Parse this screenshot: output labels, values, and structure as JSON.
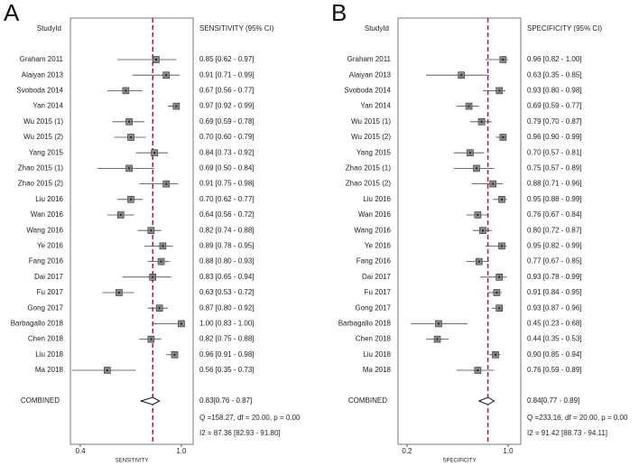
{
  "chart_data": [
    {
      "type": "forest",
      "panel_label": "A",
      "column_header": "StudyId",
      "ci_header": "SENSITIVITY (95% CI)",
      "xlabel": "SENSITIVITY",
      "categories": [
        "Graham 2011",
        "Alaiyan 2013",
        "Svoboda 2014",
        "Yan 2014",
        "Wu 2015 (1)",
        "Wu 2015 (2)",
        "Yang 2015",
        "Zhao 2015 (1)",
        "Zhao 2015 (2)",
        "Liu 2016",
        "Wan 2016",
        "Wang 2016",
        "Ye 2016",
        "Fang 2016",
        "Dai 2017",
        "Fu 2017",
        "Gong 2017",
        "Barbagallo 2018",
        "Chen 2018",
        "Liu 2018",
        "Ma 2018"
      ],
      "values": [
        0.85,
        0.91,
        0.67,
        0.97,
        0.69,
        0.7,
        0.84,
        0.69,
        0.91,
        0.7,
        0.64,
        0.82,
        0.89,
        0.88,
        0.83,
        0.63,
        0.87,
        1.0,
        0.82,
        0.96,
        0.56
      ],
      "lower": [
        0.62,
        0.71,
        0.56,
        0.92,
        0.59,
        0.6,
        0.73,
        0.5,
        0.75,
        0.62,
        0.56,
        0.74,
        0.78,
        0.8,
        0.65,
        0.53,
        0.8,
        0.83,
        0.75,
        0.91,
        0.35
      ],
      "upper": [
        0.97,
        0.99,
        0.77,
        0.99,
        0.78,
        0.79,
        0.92,
        0.84,
        0.98,
        0.77,
        0.72,
        0.88,
        0.95,
        0.93,
        0.94,
        0.72,
        0.92,
        1.0,
        0.88,
        0.98,
        0.73
      ],
      "value_labels": [
        "0.85 [0.62 - 0.97]",
        "0.91 [0.71 - 0.99]",
        "0.67 [0.56 - 0.77]",
        "0.97 [0.92 - 0.99]",
        "0.69 [0.59 - 0.78]",
        "0.70 [0.60 - 0.79]",
        "0.84 [0.73 - 0.92]",
        "0.69 [0.50 - 0.84]",
        "0.91 [0.75 - 0.98]",
        "0.70 [0.62 - 0.77]",
        "0.64 [0.56 - 0.72]",
        "0.82 [0.74 - 0.88]",
        "0.89 [0.78 - 0.95]",
        "0.88 [0.80 - 0.93]",
        "0.83 [0.65 - 0.94]",
        "0.63 [0.53 - 0.72]",
        "0.87 [0.80 - 0.92]",
        "1.00 [0.83 - 1.00]",
        "0.82 [0.75 - 0.88]",
        "0.96 [0.91 - 0.98]",
        "0.56 [0.35 - 0.73]"
      ],
      "combined_label": "COMBINED",
      "combined": {
        "value": 0.83,
        "lower": 0.76,
        "upper": 0.87,
        "label": "0.83[0.76 - 0.87]"
      },
      "q_text": "Q =158.27, df = 20.00, p =  0.00",
      "i2_text": "I2 = 87.36 [82.93 - 91.80]",
      "xlim": [
        0.341,
        1.07
      ],
      "xticks": [
        0.4,
        {
          "value": 1,
          "label": "1.0"
        }
      ],
      "color": "#888888",
      "reference_line_color": "#c0143c"
    },
    {
      "type": "forest",
      "panel_label": "B",
      "column_header": "StudyId",
      "ci_header": "SPECIFICITY (95% CI)",
      "xlabel": "SPECIFICITY",
      "categories": [
        "Graham 2011",
        "Alaiyan 2013",
        "Svoboda 2014",
        "Yan 2014",
        "Wu 2015 (1)",
        "Wu 2015 (2)",
        "Yang 2015",
        "Zhao 2015 (1)",
        "Zhao 2015 (2)",
        "Liu 2016",
        "Wan 2016",
        "Wang 2016",
        "Ye 2016",
        "Fang 2016",
        "Dai 2017",
        "Fu 2017",
        "Gong 2017",
        "Barbagallo 2018",
        "Chen 2018",
        "Liu 2018",
        "Ma 2018"
      ],
      "values": [
        0.96,
        0.63,
        0.93,
        0.69,
        0.79,
        0.96,
        0.7,
        0.75,
        0.88,
        0.95,
        0.76,
        0.8,
        0.95,
        0.77,
        0.93,
        0.91,
        0.93,
        0.45,
        0.44,
        0.9,
        0.76
      ],
      "lower": [
        0.82,
        0.35,
        0.8,
        0.59,
        0.7,
        0.9,
        0.57,
        0.57,
        0.71,
        0.88,
        0.67,
        0.72,
        0.82,
        0.67,
        0.78,
        0.84,
        0.87,
        0.23,
        0.35,
        0.85,
        0.59
      ],
      "upper": [
        1.0,
        0.85,
        0.98,
        0.77,
        0.87,
        0.99,
        0.81,
        0.89,
        0.96,
        0.99,
        0.84,
        0.87,
        0.99,
        0.85,
        0.99,
        0.95,
        0.96,
        0.68,
        0.53,
        0.94,
        0.89
      ],
      "value_labels": [
        "0.96 [0.82 - 1.00]",
        "0.63 [0.35 - 0.85]",
        "0.93 [0.80 - 0.98]",
        "0.69 [0.59 - 0.77]",
        "0.79 [0.70 - 0.87]",
        "0.96 [0.90 - 0.99]",
        "0.70 [0.57 - 0.81]",
        "0.75 [0.57 - 0.89]",
        "0.88 [0.71 - 0.96]",
        "0.95 [0.88 - 0.99]",
        "0.76 [0.67 - 0.84]",
        "0.80 [0.72 - 0.87]",
        "0.95 [0.82 - 0.99]",
        "0.77 [0.67 - 0.85]",
        "0.93 [0.78 - 0.99]",
        "0.91 [0.84 - 0.95]",
        "0.93 [0.87 - 0.96]",
        "0.45 [0.23 - 0.68]",
        "0.44 [0.35 - 0.53]",
        "0.90 [0.85 - 0.94]",
        "0.76 [0.59 - 0.89]"
      ],
      "combined_label": "COMBINED",
      "combined": {
        "value": 0.84,
        "lower": 0.77,
        "upper": 0.89,
        "label": "0.84[0.77 - 0.89]"
      },
      "q_text": "Q =233.16, df = 20.00, p =  0.00",
      "i2_text": "I2 = 91.42 [88.73 - 94.11]",
      "xlim": [
        0.129,
        1.1
      ],
      "xticks": [
        0.2,
        {
          "value": 1,
          "label": "1.0"
        }
      ],
      "color": "#888888",
      "reference_line_color": "#c0143c"
    }
  ]
}
